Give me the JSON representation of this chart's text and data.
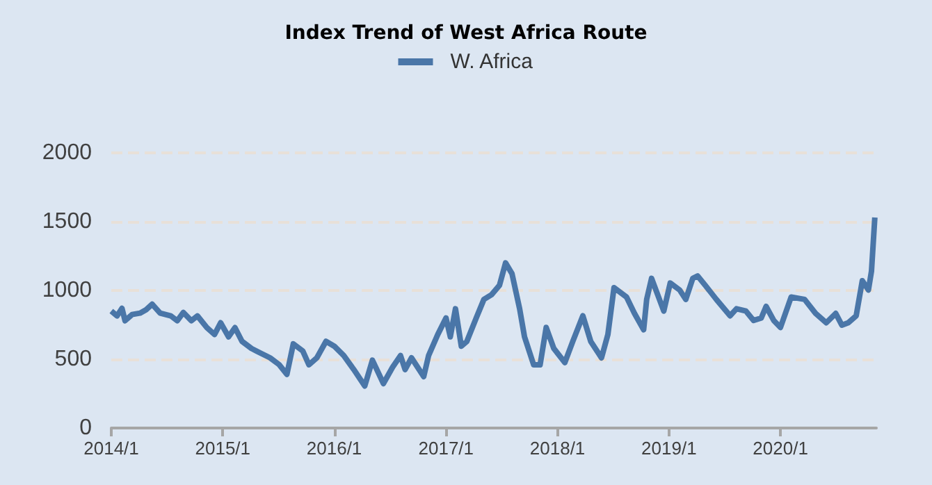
{
  "chart_data": {
    "type": "line",
    "title": "Index Trend of West Africa Route",
    "x": [
      "2014-01-01",
      "2014-01-20",
      "2014-02-05",
      "2014-02-15",
      "2014-03-10",
      "2014-04-05",
      "2014-04-25",
      "2014-05-15",
      "2014-06-10",
      "2014-07-15",
      "2014-08-05",
      "2014-08-25",
      "2014-09-20",
      "2014-10-10",
      "2014-11-10",
      "2014-12-05",
      "2014-12-25",
      "2015-01-20",
      "2015-02-10",
      "2015-03-05",
      "2015-04-05",
      "2015-05-05",
      "2015-06-05",
      "2015-07-05",
      "2015-07-30",
      "2015-08-20",
      "2015-09-20",
      "2015-10-10",
      "2015-11-05",
      "2015-12-05",
      "2016-01-01",
      "2016-02-01",
      "2016-03-05",
      "2016-04-10",
      "2016-05-05",
      "2016-06-10",
      "2016-07-10",
      "2016-08-05",
      "2016-08-20",
      "2016-09-10",
      "2016-10-20",
      "2016-11-05",
      "2016-12-05",
      "2017-01-01",
      "2017-01-15",
      "2017-02-01",
      "2017-02-20",
      "2017-03-10",
      "2017-04-10",
      "2017-05-05",
      "2017-05-30",
      "2017-06-25",
      "2017-07-15",
      "2017-08-05",
      "2017-08-30",
      "2017-09-15",
      "2017-10-15",
      "2017-11-05",
      "2017-11-25",
      "2017-12-20",
      "2018-01-25",
      "2018-02-20",
      "2018-03-25",
      "2018-04-20",
      "2018-05-25",
      "2018-06-15",
      "2018-07-05",
      "2018-08-15",
      "2018-09-10",
      "2018-10-10",
      "2018-10-20",
      "2018-11-05",
      "2018-11-25",
      "2018-12-15",
      "2019-01-05",
      "2019-02-05",
      "2019-02-25",
      "2019-03-20",
      "2019-04-05",
      "2019-04-30",
      "2019-06-05",
      "2019-07-20",
      "2019-08-10",
      "2019-09-10",
      "2019-10-05",
      "2019-10-30",
      "2019-11-15",
      "2019-12-10",
      "2020-01-01",
      "2020-02-05",
      "2020-03-20",
      "2020-04-25",
      "2020-05-30",
      "2020-06-30",
      "2020-07-20",
      "2020-08-10",
      "2020-09-05",
      "2020-09-25",
      "2020-10-15",
      "2020-10-25",
      "2020-11-05"
    ],
    "series": [
      {
        "name": "W. Africa",
        "color": "#4a76a8",
        "values": [
          850,
          815,
          870,
          780,
          825,
          835,
          860,
          900,
          835,
          815,
          780,
          840,
          780,
          815,
          730,
          680,
          765,
          663,
          730,
          630,
          578,
          544,
          510,
          460,
          390,
          612,
          560,
          460,
          510,
          630,
          595,
          527,
          425,
          306,
          493,
          323,
          442,
          527,
          425,
          510,
          374,
          527,
          680,
          800,
          663,
          867,
          595,
          629,
          800,
          935,
          969,
          1037,
          1200,
          1122,
          867,
          663,
          459,
          459,
          731,
          578,
          476,
          629,
          816,
          629,
          510,
          680,
          1020,
          952,
          833,
          714,
          935,
          1088,
          969,
          850,
          1054,
          1003,
          935,
          1088,
          1105,
          1037,
          935,
          816,
          867,
          850,
          782,
          799,
          884,
          782,
          731,
          952,
          935,
          833,
          765,
          833,
          748,
          765,
          816,
          1071,
          1003,
          1139,
          1530
        ]
      }
    ],
    "xlim": [
      "2014-01-01",
      "2020-11-10"
    ],
    "xticks": [
      {
        "value": "2014-01-01",
        "label": "2014/1"
      },
      {
        "value": "2015-01-01",
        "label": "2015/1"
      },
      {
        "value": "2016-01-01",
        "label": "2016/1"
      },
      {
        "value": "2017-01-01",
        "label": "2017/1"
      },
      {
        "value": "2018-01-01",
        "label": "2018/1"
      },
      {
        "value": "2019-01-01",
        "label": "2019/1"
      },
      {
        "value": "2020-01-01",
        "label": "2020/1"
      }
    ],
    "ylim": [
      0,
      2000
    ],
    "yticks": [
      0,
      500,
      1000,
      1500,
      2000
    ],
    "grid": "y",
    "legend": "top",
    "marker": "none",
    "line_style": "solid"
  }
}
